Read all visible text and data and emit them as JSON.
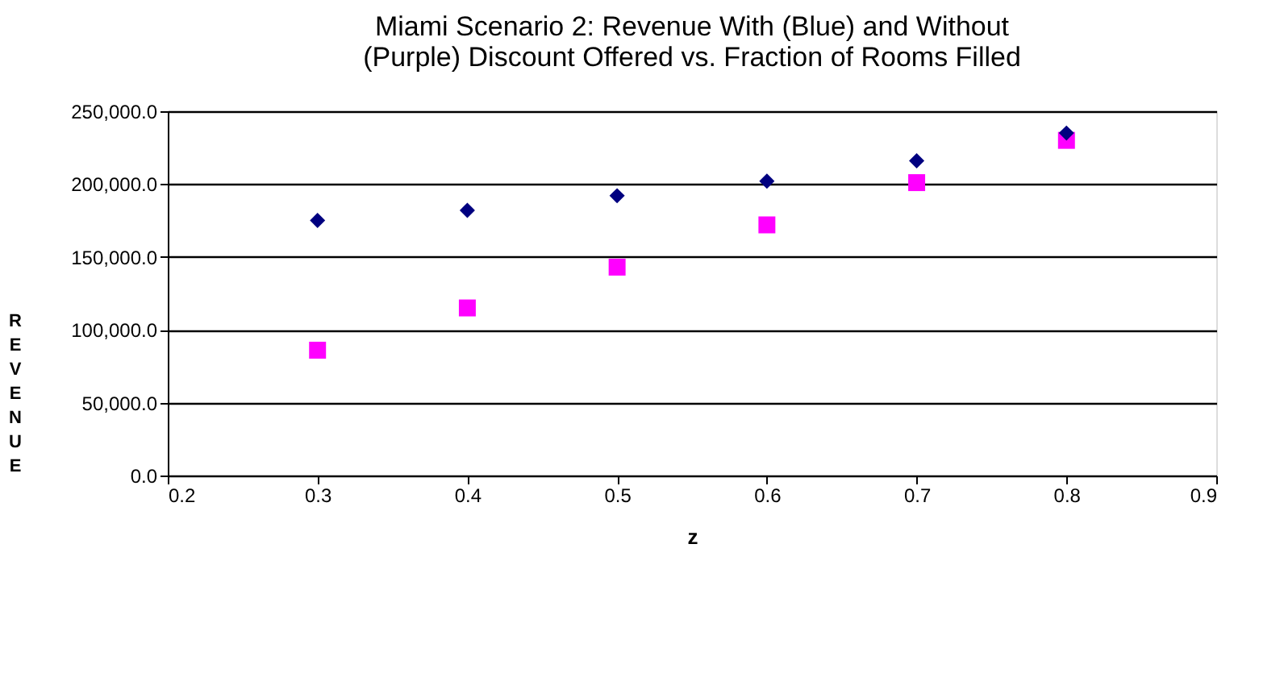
{
  "chart_data": {
    "type": "scatter",
    "title": "Miami Scenario 2:  Revenue With (Blue) and Without (Purple) Discount Offered vs. Fraction of Rooms Filled",
    "xlabel": "z",
    "ylabel": "REVENUE",
    "x": [
      0.3,
      0.4,
      0.5,
      0.6,
      0.7,
      0.8
    ],
    "series": [
      {
        "color": "#000080",
        "marker": "diamond",
        "values": [
          175000,
          182000,
          192000,
          202000,
          216000,
          235000
        ]
      },
      {
        "color": "#ff00ff",
        "marker": "square",
        "values": [
          86000,
          115000,
          143000,
          172000,
          201000,
          230000
        ]
      }
    ],
    "xlim": [
      0.2,
      0.9
    ],
    "xticks": [
      0.2,
      0.3,
      0.4,
      0.5,
      0.6,
      0.7,
      0.8,
      0.9
    ],
    "ylim": [
      0,
      250000
    ],
    "yticks": [
      {
        "value": 0,
        "label": "0.0"
      },
      {
        "value": 50000,
        "label": "50,000.0"
      },
      {
        "value": 100000,
        "label": "100,000.0"
      },
      {
        "value": 150000,
        "label": "150,000.0"
      },
      {
        "value": 200000,
        "label": "200,000.0"
      },
      {
        "value": 250000,
        "label": "250,000.0"
      }
    ],
    "grid": "y"
  }
}
